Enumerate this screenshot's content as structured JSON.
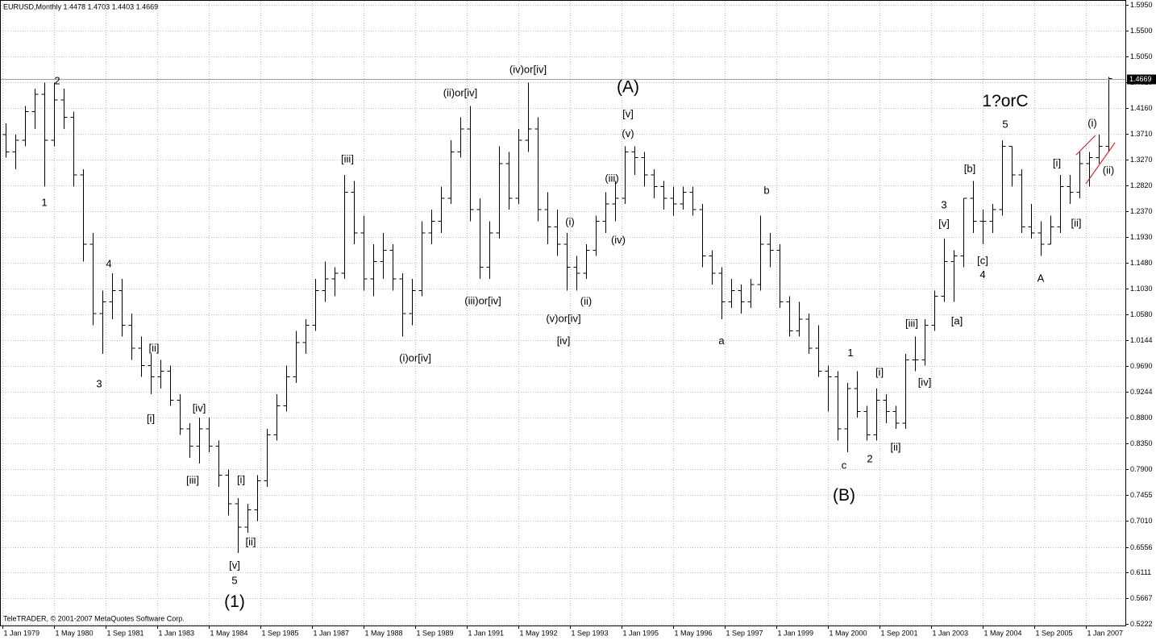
{
  "chart_data": {
    "type": "ohlc",
    "title": "EURUSD,Monthly  1.4478 1.4703 1.4403 1.4669",
    "footer": "TeleTRADER, © 2001-2007 MetaQuotes Software Corp.",
    "last_price": 1.4669,
    "color": "#000000",
    "grid": true,
    "xlim": [
      "1979-01",
      "2008-01"
    ],
    "ylim": [
      0.5222,
      1.595
    ],
    "yticks": [
      0.5222,
      0.5667,
      0.6111,
      0.6556,
      {
        "value": 0.701,
        "label": "0.7010"
      },
      0.7455,
      {
        "value": 0.79,
        "label": "0.7900"
      },
      {
        "value": 0.835,
        "label": "0.8350"
      },
      {
        "value": 0.88,
        "label": "0.8800"
      },
      0.9244,
      {
        "value": 0.969,
        "label": "0.9690"
      },
      1.0144,
      {
        "value": 1.058,
        "label": "1.0580"
      },
      {
        "value": 1.103,
        "label": "1.1030"
      },
      {
        "value": 1.148,
        "label": "1.1480"
      },
      {
        "value": 1.193,
        "label": "1.1930"
      },
      {
        "value": 1.237,
        "label": "1.2370"
      },
      {
        "value": 1.282,
        "label": "1.2820"
      },
      {
        "value": 1.327,
        "label": "1.3270"
      },
      {
        "value": 1.371,
        "label": "1.3710"
      },
      {
        "value": 1.416,
        "label": "1.4160"
      },
      {
        "value": 1.461,
        "label": "1.4610"
      },
      {
        "value": 1.505,
        "label": "1.5050"
      },
      {
        "value": 1.55,
        "label": "1.5500"
      },
      {
        "value": 1.595,
        "label": "1.5950"
      }
    ],
    "xticks": [
      {
        "value": "1979-01",
        "label": "1 Jan 1979"
      },
      {
        "value": "1980-05",
        "label": "1 May 1980"
      },
      {
        "value": "1981-09",
        "label": "1 Sep 1981"
      },
      {
        "value": "1983-01",
        "label": "1 Jan 1983"
      },
      {
        "value": "1984-05",
        "label": "1 May 1984"
      },
      {
        "value": "1985-09",
        "label": "1 Sep 1985"
      },
      {
        "value": "1987-01",
        "label": "1 Jan 1987"
      },
      {
        "value": "1988-05",
        "label": "1 May 1988"
      },
      {
        "value": "1989-09",
        "label": "1 Sep 1989"
      },
      {
        "value": "1991-01",
        "label": "1 Jan 1991"
      },
      {
        "value": "1992-05",
        "label": "1 May 1992"
      },
      {
        "value": "1993-09",
        "label": "1 Sep 1993"
      },
      {
        "value": "1995-01",
        "label": "1 Jan 1995"
      },
      {
        "value": "1996-05",
        "label": "1 May 1996"
      },
      {
        "value": "1997-09",
        "label": "1 Sep 1997"
      },
      {
        "value": "1999-01",
        "label": "1 Jan 1999"
      },
      {
        "value": "2000-05",
        "label": "1 May 2000"
      },
      {
        "value": "2001-09",
        "label": "1 Sep 2001"
      },
      {
        "value": "2003-01",
        "label": "1 Jan 2003"
      },
      {
        "value": "2004-05",
        "label": "1 May 2004"
      },
      {
        "value": "2005-09",
        "label": "1 Sep 2005"
      },
      {
        "value": "2007-01",
        "label": "1 Jan 2007"
      }
    ],
    "x": [
      "1979-01",
      "1979-04",
      "1979-07",
      "1979-10",
      "1980-01",
      "1980-04",
      "1980-07",
      "1980-10",
      "1981-01",
      "1981-04",
      "1981-07",
      "1981-10",
      "1982-01",
      "1982-04",
      "1982-07",
      "1982-10",
      "1983-01",
      "1983-04",
      "1983-07",
      "1983-10",
      "1984-01",
      "1984-04",
      "1984-07",
      "1984-10",
      "1985-01",
      "1985-04",
      "1985-07",
      "1985-10",
      "1986-01",
      "1986-04",
      "1986-07",
      "1986-10",
      "1987-01",
      "1987-04",
      "1987-07",
      "1987-10",
      "1988-01",
      "1988-04",
      "1988-07",
      "1988-10",
      "1989-01",
      "1989-04",
      "1989-07",
      "1989-10",
      "1990-01",
      "1990-04",
      "1990-07",
      "1990-10",
      "1991-01",
      "1991-04",
      "1991-07",
      "1991-10",
      "1992-01",
      "1992-04",
      "1992-07",
      "1992-10",
      "1993-01",
      "1993-04",
      "1993-07",
      "1993-10",
      "1994-01",
      "1994-04",
      "1994-07",
      "1994-10",
      "1995-01",
      "1995-04",
      "1995-07",
      "1995-10",
      "1996-01",
      "1996-04",
      "1996-07",
      "1996-10",
      "1997-01",
      "1997-04",
      "1997-07",
      "1997-10",
      "1998-01",
      "1998-04",
      "1998-07",
      "1998-10",
      "1999-01",
      "1999-04",
      "1999-07",
      "1999-10",
      "2000-01",
      "2000-04",
      "2000-07",
      "2000-10",
      "2001-01",
      "2001-04",
      "2001-07",
      "2001-10",
      "2002-01",
      "2002-04",
      "2002-07",
      "2002-10",
      "2003-01",
      "2003-04",
      "2003-07",
      "2003-10",
      "2004-01",
      "2004-04",
      "2004-07",
      "2004-10",
      "2005-01",
      "2005-04",
      "2005-07",
      "2005-10",
      "2006-01",
      "2006-04",
      "2006-07",
      "2006-10",
      "2007-01",
      "2007-04",
      "2007-07"
    ],
    "open": [
      1.37,
      1.34,
      1.36,
      1.41,
      1.44,
      1.36,
      1.43,
      1.4,
      1.3,
      1.18,
      1.06,
      1.08,
      1.1,
      1.04,
      1.0,
      0.97,
      0.95,
      0.96,
      0.91,
      0.86,
      0.83,
      0.86,
      0.83,
      0.78,
      0.73,
      0.69,
      0.72,
      0.77,
      0.85,
      0.9,
      0.95,
      1.01,
      1.04,
      1.1,
      1.12,
      1.13,
      1.27,
      1.2,
      1.12,
      1.15,
      1.17,
      1.12,
      1.06,
      1.1,
      1.2,
      1.22,
      1.26,
      1.34,
      1.38,
      1.24,
      1.14,
      1.2,
      1.32,
      1.26,
      1.36,
      1.38,
      1.24,
      1.21,
      1.18,
      1.14,
      1.13,
      1.17,
      1.22,
      1.25,
      1.26,
      1.34,
      1.33,
      1.3,
      1.28,
      1.26,
      1.25,
      1.27,
      1.24,
      1.16,
      1.13,
      1.08,
      1.1,
      1.08,
      1.11,
      1.18,
      1.17,
      1.08,
      1.03,
      1.05,
      1.0,
      0.96,
      0.95,
      0.86,
      0.93,
      0.89,
      0.85,
      0.91,
      0.89,
      0.87,
      0.98,
      0.98,
      1.04,
      1.09,
      1.15,
      1.16,
      1.26,
      1.22,
      1.22,
      1.24,
      1.35,
      1.3,
      1.21,
      1.2,
      1.18,
      1.21,
      1.28,
      1.27,
      1.32,
      1.33,
      1.35
    ],
    "high": [
      1.39,
      1.37,
      1.42,
      1.45,
      1.46,
      1.46,
      1.45,
      1.41,
      1.31,
      1.2,
      1.1,
      1.13,
      1.12,
      1.06,
      1.02,
      0.99,
      0.98,
      0.97,
      0.92,
      0.87,
      0.88,
      0.88,
      0.84,
      0.79,
      0.74,
      0.73,
      0.78,
      0.86,
      0.92,
      0.97,
      1.03,
      1.05,
      1.12,
      1.15,
      1.14,
      1.3,
      1.29,
      1.23,
      1.18,
      1.2,
      1.18,
      1.13,
      1.12,
      1.22,
      1.24,
      1.28,
      1.36,
      1.4,
      1.42,
      1.26,
      1.22,
      1.35,
      1.34,
      1.38,
      1.46,
      1.4,
      1.27,
      1.24,
      1.2,
      1.16,
      1.18,
      1.23,
      1.27,
      1.29,
      1.35,
      1.35,
      1.34,
      1.31,
      1.29,
      1.28,
      1.28,
      1.28,
      1.25,
      1.17,
      1.14,
      1.12,
      1.11,
      1.12,
      1.23,
      1.2,
      1.18,
      1.09,
      1.08,
      1.06,
      1.04,
      0.97,
      0.96,
      0.94,
      0.96,
      0.9,
      0.93,
      0.92,
      0.9,
      0.99,
      1.02,
      1.05,
      1.1,
      1.19,
      1.17,
      1.26,
      1.29,
      1.24,
      1.25,
      1.36,
      1.35,
      1.31,
      1.25,
      1.22,
      1.23,
      1.3,
      1.3,
      1.34,
      1.34,
      1.37,
      1.4703
    ],
    "low": [
      1.33,
      1.31,
      1.35,
      1.38,
      1.28,
      1.35,
      1.38,
      1.28,
      1.15,
      1.04,
      0.99,
      1.05,
      1.02,
      0.98,
      0.95,
      0.92,
      0.93,
      0.9,
      0.85,
      0.81,
      0.8,
      0.82,
      0.76,
      0.71,
      0.645,
      0.68,
      0.7,
      0.76,
      0.84,
      0.89,
      0.94,
      0.99,
      1.03,
      1.08,
      1.09,
      1.12,
      1.18,
      1.1,
      1.09,
      1.12,
      1.1,
      1.02,
      1.04,
      1.09,
      1.18,
      1.2,
      1.25,
      1.33,
      1.22,
      1.12,
      1.12,
      1.19,
      1.24,
      1.25,
      1.34,
      1.22,
      1.18,
      1.16,
      1.1,
      1.1,
      1.12,
      1.16,
      1.2,
      1.22,
      1.25,
      1.3,
      1.28,
      1.26,
      1.24,
      1.23,
      1.24,
      1.23,
      1.14,
      1.11,
      1.05,
      1.07,
      1.06,
      1.07,
      1.1,
      1.14,
      1.07,
      1.02,
      1.02,
      0.99,
      0.95,
      0.89,
      0.84,
      0.82,
      0.88,
      0.84,
      0.84,
      0.87,
      0.86,
      0.86,
      0.96,
      0.97,
      1.03,
      1.08,
      1.08,
      1.14,
      1.2,
      1.18,
      1.2,
      1.23,
      1.28,
      1.2,
      1.19,
      1.16,
      1.18,
      1.2,
      1.25,
      1.26,
      1.28,
      1.32,
      1.34
    ],
    "close": [
      1.34,
      1.36,
      1.41,
      1.44,
      1.36,
      1.43,
      1.4,
      1.3,
      1.18,
      1.06,
      1.08,
      1.1,
      1.04,
      1.0,
      0.97,
      0.95,
      0.96,
      0.91,
      0.86,
      0.83,
      0.86,
      0.83,
      0.78,
      0.73,
      0.69,
      0.72,
      0.77,
      0.85,
      0.9,
      0.95,
      1.01,
      1.04,
      1.1,
      1.12,
      1.13,
      1.27,
      1.2,
      1.12,
      1.15,
      1.17,
      1.12,
      1.06,
      1.1,
      1.2,
      1.22,
      1.26,
      1.34,
      1.38,
      1.24,
      1.14,
      1.2,
      1.32,
      1.26,
      1.36,
      1.38,
      1.24,
      1.21,
      1.18,
      1.14,
      1.13,
      1.17,
      1.22,
      1.25,
      1.26,
      1.34,
      1.33,
      1.3,
      1.28,
      1.26,
      1.25,
      1.27,
      1.24,
      1.16,
      1.13,
      1.08,
      1.1,
      1.08,
      1.11,
      1.18,
      1.17,
      1.08,
      1.03,
      1.05,
      1.0,
      0.96,
      0.95,
      0.86,
      0.93,
      0.89,
      0.85,
      0.91,
      0.89,
      0.87,
      0.98,
      0.98,
      1.04,
      1.09,
      1.15,
      1.16,
      1.26,
      1.22,
      1.22,
      1.24,
      1.35,
      1.3,
      1.21,
      1.2,
      1.18,
      1.21,
      1.28,
      1.27,
      1.32,
      1.33,
      1.35,
      1.4669
    ],
    "major_labels": [
      {
        "text": "(1)",
        "x": "1985-01",
        "y": 0.559
      },
      {
        "text": "(A)",
        "x": "1995-03",
        "y": 1.451
      },
      {
        "text": "(B)",
        "x": "2000-10",
        "y": 0.744
      },
      {
        "text": "1?orC",
        "x": "2004-12",
        "y": 1.427
      }
    ],
    "minor_labels": [
      {
        "text": "2",
        "x": "1980-06",
        "y": 1.462
      },
      {
        "text": "1",
        "x": "1980-02",
        "y": 1.251
      },
      {
        "text": "4",
        "x": "1981-10",
        "y": 1.145
      },
      {
        "text": "3",
        "x": "1981-07",
        "y": 0.937
      },
      {
        "text": "[ii]",
        "x": "1982-12",
        "y": 0.999
      },
      {
        "text": "[i]",
        "x": "1982-11",
        "y": 0.877
      },
      {
        "text": "[iv]",
        "x": "1984-02",
        "y": 0.895
      },
      {
        "text": "[iii]",
        "x": "1983-12",
        "y": 0.77
      },
      {
        "text": "[i]",
        "x": "1985-03",
        "y": 0.771
      },
      {
        "text": "[ii]",
        "x": "1985-06",
        "y": 0.663
      },
      {
        "text": "[v]",
        "x": "1985-01",
        "y": 0.623
      },
      {
        "text": "5",
        "x": "1985-01",
        "y": 0.596
      },
      {
        "text": "[iii]",
        "x": "1987-12",
        "y": 1.327
      },
      {
        "text": "(i)or[iv]",
        "x": "1989-09",
        "y": 0.982
      },
      {
        "text": "(ii)or[iv]",
        "x": "1990-11",
        "y": 1.441
      },
      {
        "text": "(iii)or[iv]",
        "x": "1991-06",
        "y": 1.081
      },
      {
        "text": "(iv)or[iv]",
        "x": "1992-08",
        "y": 1.482
      },
      {
        "text": "(i)",
        "x": "1993-09",
        "y": 1.218
      },
      {
        "text": "(v)or[iv]",
        "x": "1993-07",
        "y": 1.05
      },
      {
        "text": "[iv]",
        "x": "1993-07",
        "y": 1.012
      },
      {
        "text": "(ii)",
        "x": "1994-02",
        "y": 1.08
      },
      {
        "text": "(iii)",
        "x": "1994-10",
        "y": 1.293
      },
      {
        "text": "(iv)",
        "x": "1994-12",
        "y": 1.186
      },
      {
        "text": "(v)",
        "x": "1995-03",
        "y": 1.371
      },
      {
        "text": "[v]",
        "x": "1995-03",
        "y": 1.405
      },
      {
        "text": "a",
        "x": "1997-08",
        "y": 1.012
      },
      {
        "text": "b",
        "x": "1998-10",
        "y": 1.272
      },
      {
        "text": "c",
        "x": "2000-10",
        "y": 0.796
      },
      {
        "text": "1",
        "x": "2000-12",
        "y": 0.991
      },
      {
        "text": "2",
        "x": "2001-06",
        "y": 0.807
      },
      {
        "text": "[i]",
        "x": "2001-09",
        "y": 0.957
      },
      {
        "text": "[ii]",
        "x": "2002-02",
        "y": 0.827
      },
      {
        "text": "[iii]",
        "x": "2002-07",
        "y": 1.042
      },
      {
        "text": "[iv]",
        "x": "2002-11",
        "y": 0.94
      },
      {
        "text": "3",
        "x": "2003-05",
        "y": 1.247
      },
      {
        "text": "[v]",
        "x": "2003-05",
        "y": 1.215
      },
      {
        "text": "[a]",
        "x": "2003-09",
        "y": 1.046
      },
      {
        "text": "[b]",
        "x": "2004-01",
        "y": 1.31
      },
      {
        "text": "[c]",
        "x": "2004-05",
        "y": 1.151
      },
      {
        "text": "4",
        "x": "2004-05",
        "y": 1.126
      },
      {
        "text": "5",
        "x": "2004-12",
        "y": 1.387
      },
      {
        "text": "A",
        "x": "2005-11",
        "y": 1.12
      },
      {
        "text": "[i]",
        "x": "2006-04",
        "y": 1.32
      },
      {
        "text": "[ii]",
        "x": "2006-10",
        "y": 1.216
      },
      {
        "text": "(i)",
        "x": "2007-03",
        "y": 1.389
      },
      {
        "text": "(ii)",
        "x": "2007-08",
        "y": 1.307
      }
    ],
    "trendlines": [
      {
        "color": "#ff0000",
        "x": [
          "2006-10",
          "2007-04"
        ],
        "y": [
          1.335,
          1.369
        ]
      },
      {
        "color": "#ff0000",
        "x": [
          "2007-01",
          "2007-10"
        ],
        "y": [
          1.285,
          1.356
        ]
      }
    ]
  }
}
